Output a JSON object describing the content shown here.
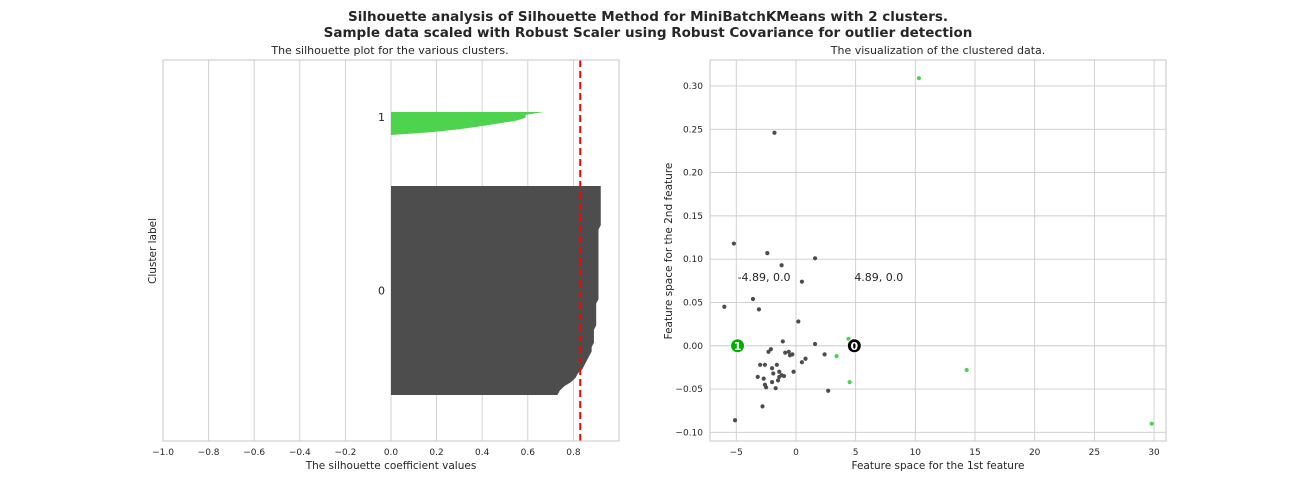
{
  "suptitle_line1": "Silhouette analysis of Silhouette Method for MiniBatchKMeans with 2 clusters.",
  "suptitle_line2": "Sample data scaled with Robust Scaler using Robust Covariance for outlier detection",
  "colors": {
    "cluster0": "#4d4d4d",
    "cluster1": "#4dd34d",
    "average_line": "#ff0000",
    "center0_fill": "#000000",
    "center1_fill": "#00b200"
  },
  "chart_data": [
    {
      "type": "silhouette",
      "title": "The silhouette plot for the various clusters.",
      "xlabel": "The silhouette coefficient values",
      "ylabel": "Cluster label",
      "xlim": [
        -1.0,
        1.0
      ],
      "xticks": [
        "−1.0",
        "−0.8",
        "−0.6",
        "−0.4",
        "−0.2",
        "0.0",
        "0.2",
        "0.4",
        "0.6",
        "0.8"
      ],
      "xtick_values": [
        -1.0,
        -0.8,
        -0.6,
        -0.4,
        -0.2,
        0.0,
        0.2,
        0.4,
        0.6,
        0.8
      ],
      "grid": true,
      "average_silhouette": 0.83,
      "clusters": [
        {
          "label": "0",
          "profile": [
            0.92,
            0.92,
            0.92,
            0.92,
            0.92,
            0.92,
            0.92,
            0.92,
            0.92,
            0.92,
            0.91,
            0.91,
            0.91,
            0.91,
            0.91,
            0.91,
            0.91,
            0.91,
            0.91,
            0.91,
            0.91,
            0.91,
            0.91,
            0.91,
            0.91,
            0.91,
            0.91,
            0.9,
            0.9,
            0.9,
            0.9,
            0.9,
            0.9,
            0.89,
            0.89,
            0.89,
            0.89,
            0.88,
            0.88,
            0.87,
            0.86,
            0.85,
            0.84,
            0.82,
            0.81,
            0.79,
            0.76,
            0.74,
            0.73
          ]
        },
        {
          "label": "1",
          "profile": [
            0.67,
            0.59,
            0.59,
            0.55,
            0.47,
            0.39,
            0.3,
            0.18,
            0.0
          ]
        }
      ]
    },
    {
      "type": "scatter",
      "title": "The visualization of the clustered data.",
      "xlabel": "Feature space for the 1st feature",
      "ylabel": "Feature space for the 2nd feature",
      "xlim": [
        -7.2,
        31.0
      ],
      "ylim": [
        -0.11,
        0.33
      ],
      "xticks": [
        "−5",
        "0",
        "5",
        "10",
        "15",
        "20",
        "25",
        "30"
      ],
      "xtick_values": [
        -5,
        0,
        5,
        10,
        15,
        20,
        25,
        30
      ],
      "yticks": [
        "−0.10",
        "−0.05",
        "0.00",
        "0.05",
        "0.10",
        "0.15",
        "0.20",
        "0.25",
        "0.30"
      ],
      "ytick_values": [
        -0.1,
        -0.05,
        0.0,
        0.05,
        0.1,
        0.15,
        0.2,
        0.25,
        0.3
      ],
      "grid": true,
      "series": [
        {
          "cluster": "0",
          "points": [
            [
              -1.8,
              0.246
            ],
            [
              -5.2,
              0.118
            ],
            [
              -2.4,
              0.107
            ],
            [
              1.6,
              0.101
            ],
            [
              -1.2,
              0.093
            ],
            [
              0.5,
              0.074
            ],
            [
              -6.0,
              0.045
            ],
            [
              -3.6,
              0.054
            ],
            [
              -3.1,
              0.042
            ],
            [
              0.2,
              0.028
            ],
            [
              -1.1,
              0.005
            ],
            [
              -0.9,
              -0.008
            ],
            [
              -0.6,
              -0.007
            ],
            [
              -0.3,
              -0.01
            ],
            [
              -0.5,
              -0.011
            ],
            [
              1.6,
              0.002
            ],
            [
              -2.1,
              -0.004
            ],
            [
              -2.3,
              -0.007
            ],
            [
              -3.0,
              -0.022
            ],
            [
              -2.6,
              -0.022
            ],
            [
              -1.6,
              -0.022
            ],
            [
              -2.0,
              -0.026
            ],
            [
              -1.4,
              -0.03
            ],
            [
              -1.9,
              -0.032
            ],
            [
              -1.2,
              -0.034
            ],
            [
              -1.0,
              -0.035
            ],
            [
              -1.4,
              -0.036
            ],
            [
              -2.7,
              -0.038
            ],
            [
              -3.2,
              -0.036
            ],
            [
              -2.6,
              -0.045
            ],
            [
              -2.5,
              -0.048
            ],
            [
              -2.0,
              -0.042
            ],
            [
              -1.5,
              -0.04
            ],
            [
              -1.7,
              -0.049
            ],
            [
              -0.2,
              -0.03
            ],
            [
              0.8,
              -0.015
            ],
            [
              0.5,
              -0.019
            ],
            [
              2.4,
              -0.01
            ],
            [
              2.7,
              -0.052
            ],
            [
              -2.8,
              -0.07
            ],
            [
              -5.1,
              -0.086
            ]
          ]
        },
        {
          "cluster": "1",
          "points": [
            [
              10.3,
              0.309
            ],
            [
              14.3,
              -0.028
            ],
            [
              29.8,
              -0.09
            ],
            [
              4.5,
              -0.042
            ],
            [
              3.4,
              -0.012
            ],
            [
              4.4,
              0.008
            ]
          ]
        }
      ],
      "centers": [
        {
          "label": "0",
          "x": 4.89,
          "y": 0.0,
          "annotation": "4.89, 0.0"
        },
        {
          "label": "1",
          "x": -4.89,
          "y": 0.0,
          "annotation": "-4.89, 0.0"
        }
      ]
    }
  ]
}
